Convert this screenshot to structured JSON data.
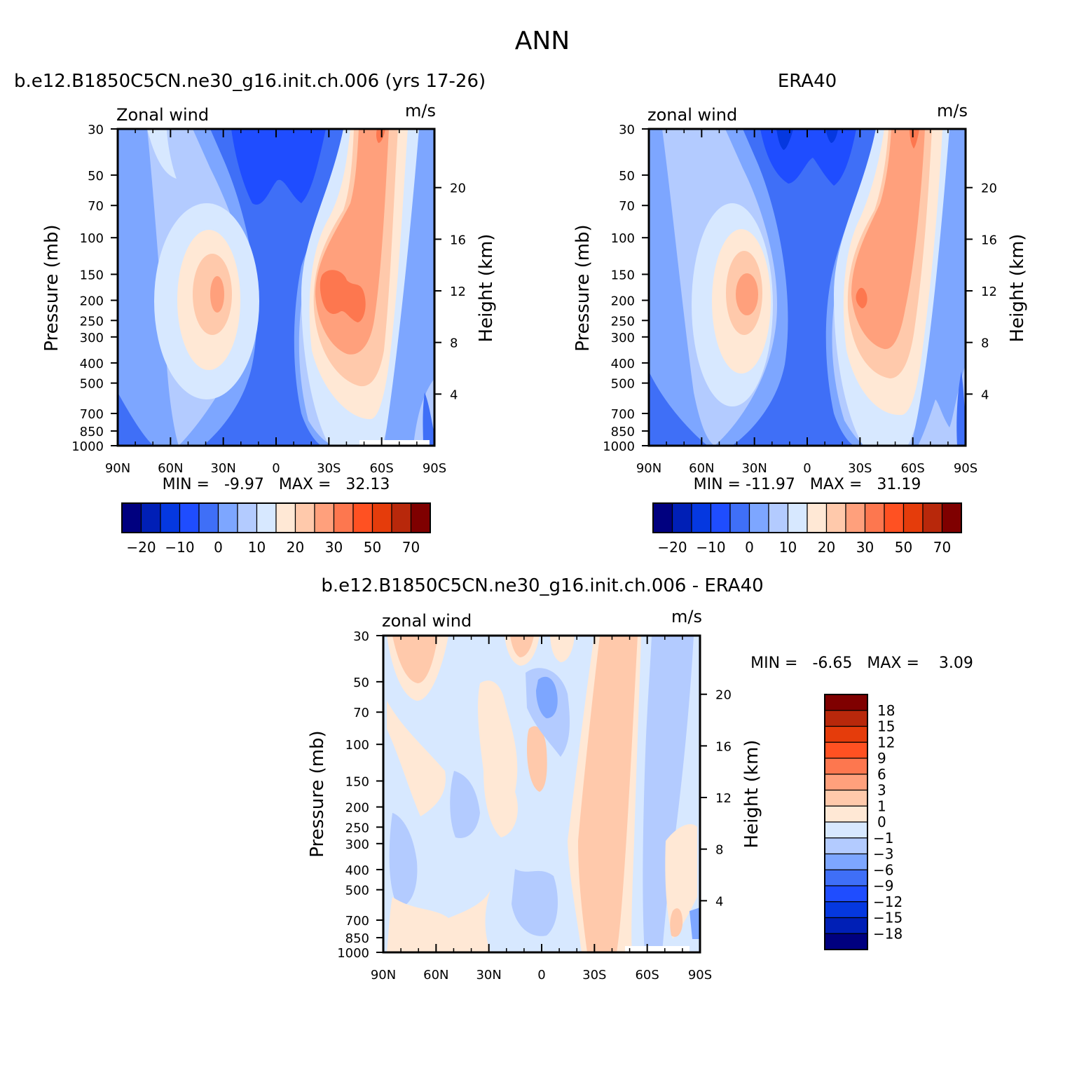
{
  "page_title": "ANN",
  "chart_data": [
    {
      "type": "heatmap",
      "title": "b.e12.B1850C5CN.ne30_g16.init.ch.006 (yrs 17-26)",
      "variable_label": "Zonal wind",
      "units": "m/s",
      "xlabel": "",
      "ylabel": "Pressure (mb)",
      "y2label": "Height (km)",
      "x_ticks": [
        "90N",
        "60N",
        "30N",
        "0",
        "30S",
        "60S",
        "90S"
      ],
      "x_tick_values": [
        90,
        60,
        30,
        0,
        -30,
        -60,
        -90
      ],
      "y_ticks": [
        30,
        50,
        70,
        100,
        150,
        200,
        250,
        300,
        400,
        500,
        700,
        850,
        1000
      ],
      "y2_ticks": [
        20,
        16,
        12,
        8,
        4
      ],
      "ylim": [
        1000,
        30
      ],
      "stats_text": "MIN =   -9.97   MAX =   32.13",
      "min": -9.97,
      "max": 32.13,
      "contour_levels_labels": [
        "-20",
        "-10",
        "0",
        "10",
        "20",
        "30",
        "50",
        "70"
      ],
      "jets": [
        {
          "lat": -35,
          "p": 200,
          "u": 32
        },
        {
          "lat": 35,
          "p": 200,
          "u": 24
        }
      ],
      "colorbar_orientation": "horizontal"
    },
    {
      "type": "heatmap",
      "title": "ERA40",
      "variable_label": "zonal wind",
      "units": "m/s",
      "xlabel": "",
      "ylabel": "Pressure (mb)",
      "y2label": "Height (km)",
      "x_ticks": [
        "90N",
        "60N",
        "30N",
        "0",
        "30S",
        "60S",
        "90S"
      ],
      "x_tick_values": [
        90,
        60,
        30,
        0,
        -30,
        -60,
        -90
      ],
      "y_ticks": [
        30,
        50,
        70,
        100,
        150,
        200,
        250,
        300,
        400,
        500,
        700,
        850,
        1000
      ],
      "y2_ticks": [
        20,
        16,
        12,
        8,
        4
      ],
      "ylim": [
        1000,
        30
      ],
      "stats_text": "MIN = -11.97   MAX =   31.19",
      "min": -11.97,
      "max": 31.19,
      "contour_levels_labels": [
        "-20",
        "-10",
        "0",
        "10",
        "20",
        "30",
        "50",
        "70"
      ],
      "jets": [
        {
          "lat": -33,
          "p": 200,
          "u": 31
        },
        {
          "lat": 32,
          "p": 200,
          "u": 24
        }
      ],
      "colorbar_orientation": "horizontal"
    },
    {
      "type": "heatmap",
      "title": "b.e12.B1850C5CN.ne30_g16.init.ch.006 - ERA40",
      "variable_label": "zonal wind",
      "units": "m/s",
      "xlabel": "",
      "ylabel": "Pressure (mb)",
      "y2label": "Height (km)",
      "x_ticks": [
        "90N",
        "60N",
        "30N",
        "0",
        "30S",
        "60S",
        "90S"
      ],
      "x_tick_values": [
        90,
        60,
        30,
        0,
        -30,
        -60,
        -90
      ],
      "y_ticks": [
        30,
        50,
        70,
        100,
        150,
        200,
        250,
        300,
        400,
        500,
        700,
        850,
        1000
      ],
      "y2_ticks": [
        20,
        16,
        12,
        8,
        4
      ],
      "ylim": [
        1000,
        30
      ],
      "stats_text": "MIN =   -6.65   MAX =    3.09",
      "min": -6.65,
      "max": 3.09,
      "contour_levels_labels": [
        "18",
        "15",
        "12",
        "9",
        "6",
        "3",
        "1",
        "0",
        "-1",
        "-3",
        "-6",
        "-9",
        "-12",
        "-15",
        "-18"
      ],
      "colorbar_orientation": "vertical"
    }
  ],
  "colormaps": {
    "full_field": [
      "#00007f",
      "#001fb6",
      "#0538e0",
      "#1f4dff",
      "#3f6ff7",
      "#7da6ff",
      "#b3cbff",
      "#d7e8ff",
      "#ffe8d5",
      "#ffc9ab",
      "#ffa07c",
      "#fd774f",
      "#ff5122",
      "#e53c0b",
      "#b8280b",
      "#7f0000"
    ],
    "difference": [
      "#00007f",
      "#001fb6",
      "#0538e0",
      "#1f4dff",
      "#3f6ff7",
      "#7da6ff",
      "#b3cbff",
      "#d7e8ff",
      "#ffe8d5",
      "#ffc9ab",
      "#ffa07c",
      "#fd774f",
      "#ff5122",
      "#e53c0b",
      "#b8280b",
      "#7f0000"
    ]
  }
}
